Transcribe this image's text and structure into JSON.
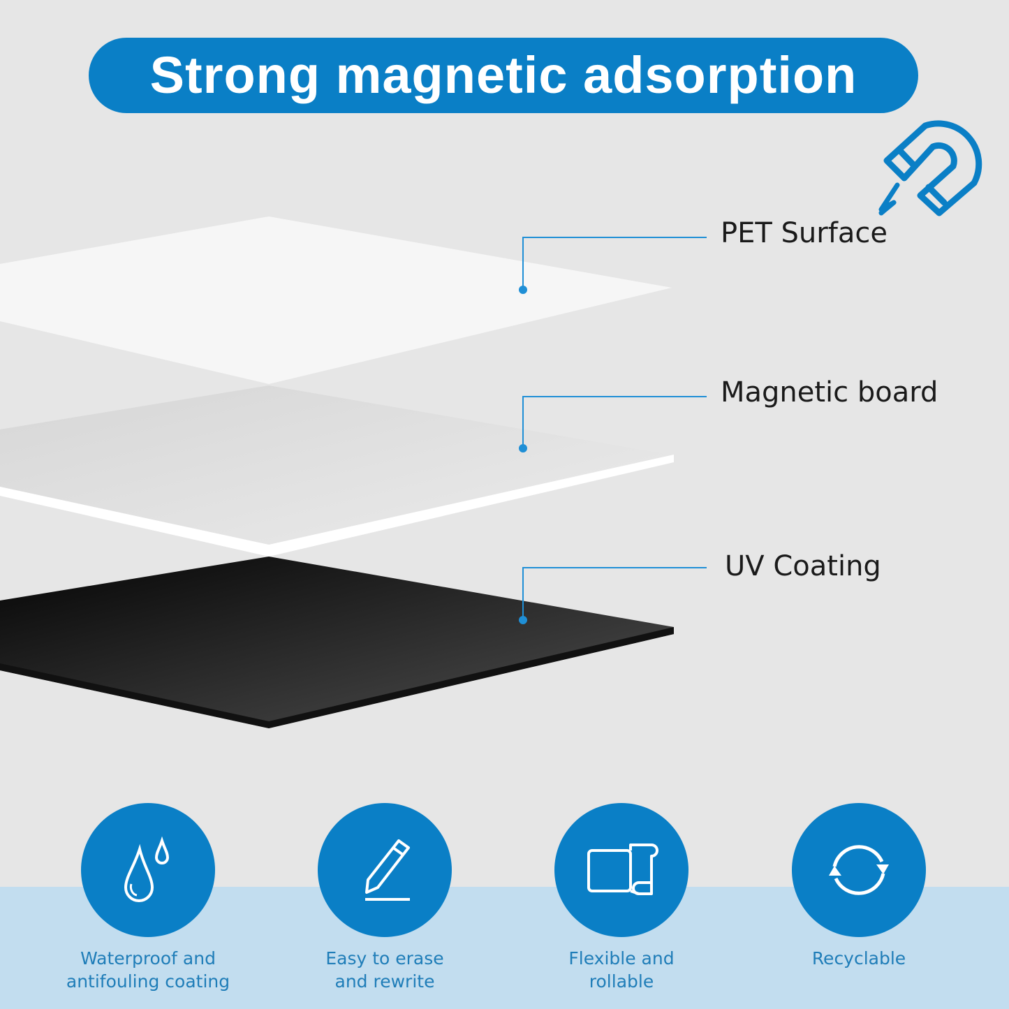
{
  "title": "Strong magnetic adsorption",
  "colors": {
    "accent": "#0a7fc6",
    "background": "#e6e6e6",
    "band": "#c2ddef"
  },
  "layers": [
    {
      "label": "PET Surface",
      "icon": "layer-white"
    },
    {
      "label": "Magnetic board",
      "icon": "layer-grey"
    },
    {
      "label": "UV Coating",
      "icon": "layer-black"
    }
  ],
  "magnet_icon": "magnet-icon",
  "features": [
    {
      "label": "Waterproof and\nantifouling coating",
      "icon": "water-drops-icon"
    },
    {
      "label": "Easy to erase\nand rewrite",
      "icon": "pencil-icon"
    },
    {
      "label": "Flexible and\nrollable",
      "icon": "roll-icon"
    },
    {
      "label": "Recyclable",
      "icon": "recycle-arrows-icon"
    }
  ]
}
